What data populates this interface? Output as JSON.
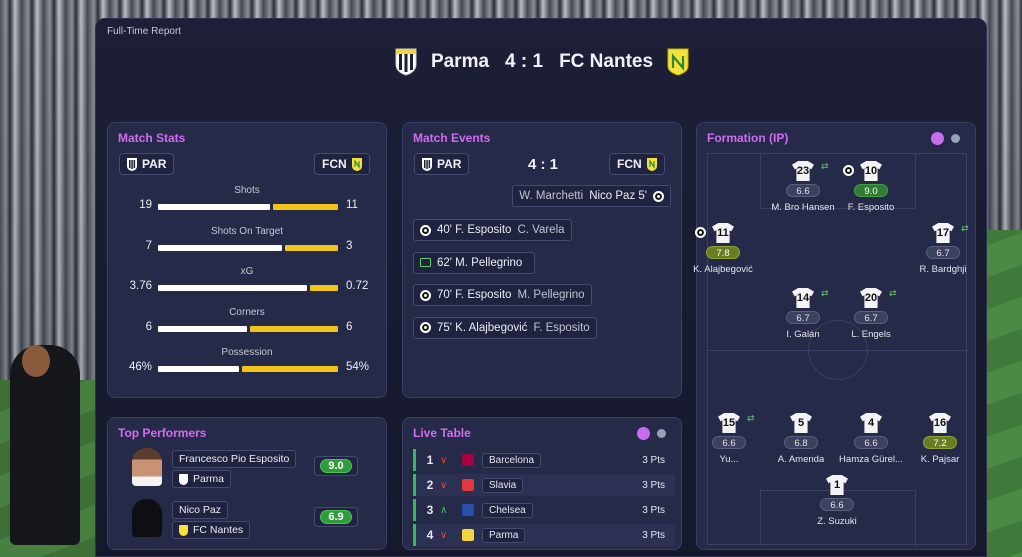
{
  "report_label": "Full-Time Report",
  "header": {
    "home": "Parma",
    "score": "4 : 1",
    "away": "FC Nantes"
  },
  "colors": {
    "accent": "#d16cf0",
    "home_bar": "#ffffff",
    "away_bar": "#f2c318",
    "good_rating": "#2e9c3a"
  },
  "match_stats": {
    "title": "Match Stats",
    "home_abbr": "PAR",
    "away_abbr": "FCN",
    "rows": [
      {
        "label": "Shots",
        "home": "19",
        "away": "11",
        "home_share": 0.633
      },
      {
        "label": "Shots On Target",
        "home": "7",
        "away": "3",
        "home_share": 0.7
      },
      {
        "label": "xG",
        "home": "3.76",
        "away": "0.72",
        "home_share": 0.839
      },
      {
        "label": "Corners",
        "home": "6",
        "away": "6",
        "home_share": 0.5
      },
      {
        "label": "Possession",
        "home": "46%",
        "away": "54%",
        "home_share": 0.46
      }
    ]
  },
  "match_events": {
    "title": "Match Events",
    "home_abbr": "PAR",
    "away_abbr": "FCN",
    "score": "4 : 1",
    "events": [
      {
        "side": "away",
        "icon": "ball-icon",
        "minute": "5'",
        "player": "Nico Paz",
        "assist": "W. Marchetti"
      },
      {
        "side": "home",
        "icon": "ball-icon",
        "minute": "40'",
        "player": "F. Esposito",
        "assist": "C. Varela"
      },
      {
        "side": "home",
        "icon": "substitution-icon",
        "minute": "62'",
        "player": "M. Pellegrino",
        "assist": ""
      },
      {
        "side": "home",
        "icon": "ball-icon",
        "minute": "70'",
        "player": "F. Esposito",
        "assist": "M. Pellegrino"
      },
      {
        "side": "home",
        "icon": "ball-icon",
        "minute": "75'",
        "player": "K. Alajbegović",
        "assist": "F. Esposito"
      }
    ]
  },
  "formation": {
    "title": "Formation (IP)",
    "players": [
      {
        "num": "23",
        "rating": "6.6",
        "name": "M. Bro Hansen",
        "tier": "grey",
        "sub": true
      },
      {
        "num": "10",
        "rating": "9.0",
        "name": "F. Esposito",
        "tier": "green",
        "goal": true
      },
      {
        "num": "11",
        "rating": "7.8",
        "name": "K. Alajbegović",
        "tier": "olive",
        "goal": true
      },
      {
        "num": "17",
        "rating": "6.7",
        "name": "R. Bardghji",
        "tier": "grey",
        "sub": true
      },
      {
        "num": "14",
        "rating": "6.7",
        "name": "I. Galán",
        "tier": "grey",
        "sub": true
      },
      {
        "num": "20",
        "rating": "6.7",
        "name": "L. Engels",
        "tier": "grey",
        "sub": true
      },
      {
        "num": "15",
        "rating": "6.6",
        "name": "Yu...",
        "tier": "grey",
        "sub": true
      },
      {
        "num": "5",
        "rating": "6.8",
        "name": "A. Amenda",
        "tier": "grey"
      },
      {
        "num": "4",
        "rating": "6.6",
        "name": "Hamza Gürel...",
        "tier": "grey"
      },
      {
        "num": "16",
        "rating": "7.2",
        "name": "K. Pajsar",
        "tier": "olive"
      },
      {
        "num": "1",
        "rating": "6.6",
        "name": "Z. Suzuki",
        "tier": "grey"
      }
    ]
  },
  "top_performers": {
    "title": "Top Performers",
    "players": [
      {
        "name": "Francesco Pio Esposito",
        "club": "Parma",
        "rating": "9.0"
      },
      {
        "name": "Nico Paz",
        "club": "FC Nantes",
        "rating": "6.9"
      }
    ]
  },
  "live_table": {
    "title": "Live Table",
    "rows": [
      {
        "pos": "1",
        "trend": "down",
        "club": "Barcelona",
        "pts": "3 Pts",
        "crest_color": "#a50044"
      },
      {
        "pos": "2",
        "trend": "down",
        "club": "Slavia",
        "pts": "3 Pts",
        "crest_color": "#e03a3e"
      },
      {
        "pos": "3",
        "trend": "up",
        "club": "Chelsea",
        "pts": "3 Pts",
        "crest_color": "#2a4fa8"
      },
      {
        "pos": "4",
        "trend": "down",
        "club": "Parma",
        "pts": "3 Pts",
        "crest_color": "#f2d640"
      }
    ]
  }
}
